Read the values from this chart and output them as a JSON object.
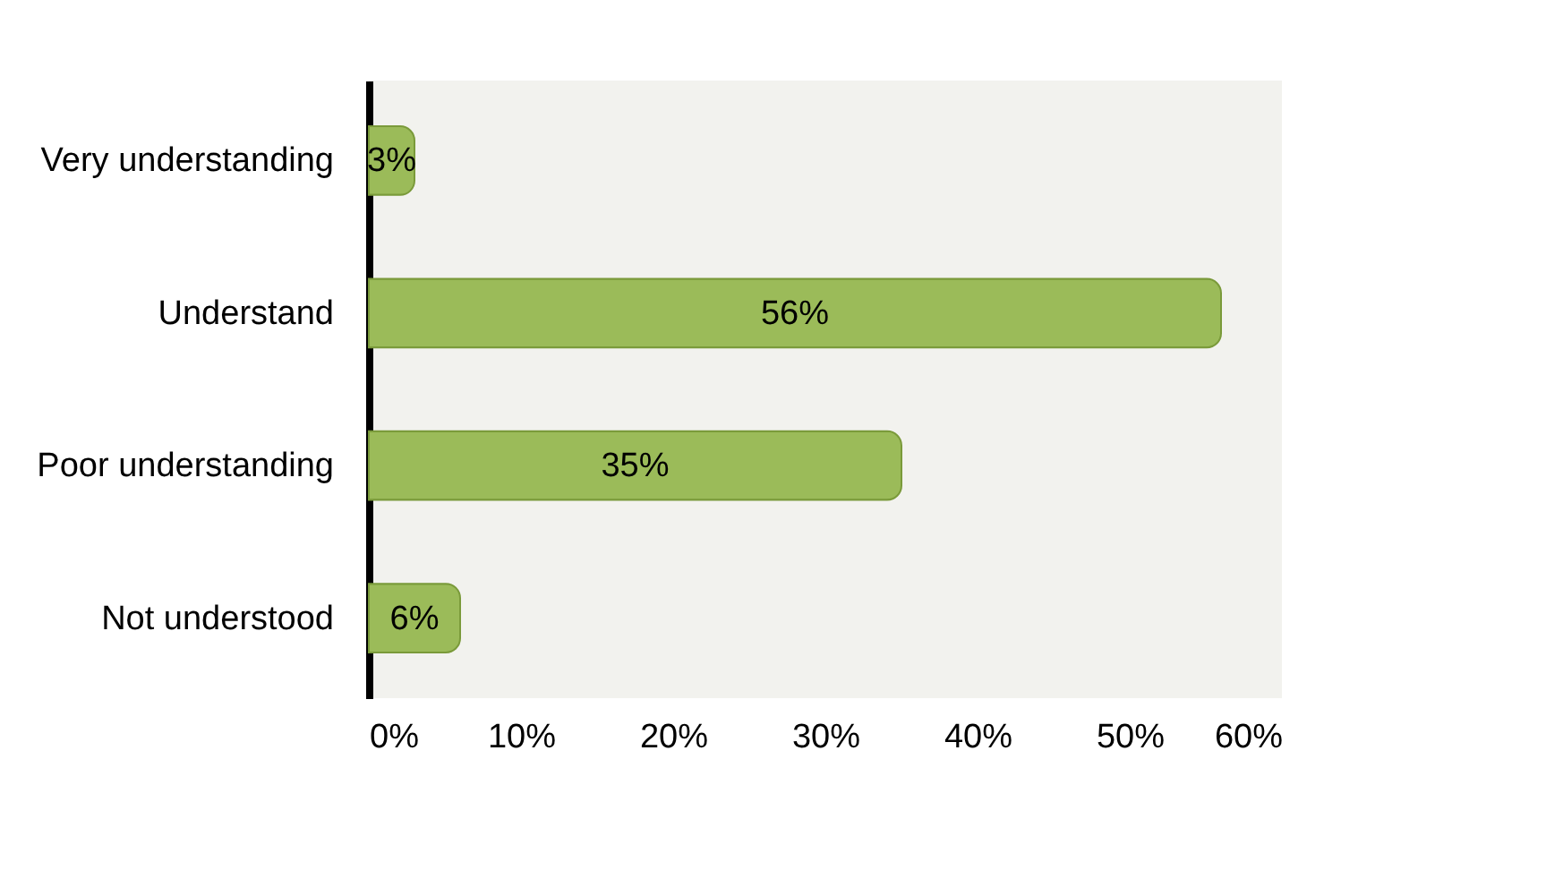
{
  "chart_data": {
    "type": "bar",
    "orientation": "horizontal",
    "categories": [
      "Very understanding",
      "Understand",
      "Poor understanding",
      "Not understood"
    ],
    "values": [
      3,
      56,
      35,
      6
    ],
    "color": "#9bbb59",
    "value_labels": [
      "3%",
      "56%",
      "35%",
      "6%"
    ],
    "xlim": [
      0,
      60
    ],
    "xticks": [
      {
        "value": 0,
        "label": "0%"
      },
      {
        "value": 10,
        "label": "10%"
      },
      {
        "value": 20,
        "label": "20%"
      },
      {
        "value": 30,
        "label": "30%"
      },
      {
        "value": 40,
        "label": "40%"
      },
      {
        "value": 50,
        "label": "50%"
      },
      {
        "value": 60,
        "label": "60%"
      }
    ],
    "grid": false
  }
}
